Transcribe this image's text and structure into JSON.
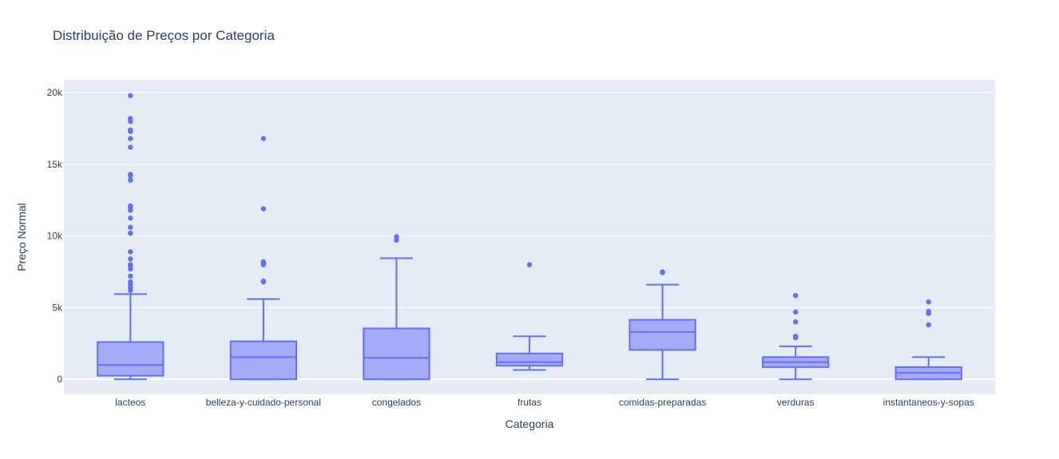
{
  "chart_data": {
    "type": "box",
    "title": "Distribuição de Preços por Categoria",
    "xlabel": "Categoria",
    "ylabel": "Preço Normal",
    "ylim": [
      -1050,
      20900
    ],
    "yticks": [
      0,
      5000,
      10000,
      15000,
      20000
    ],
    "ytick_labels": [
      "0",
      "5k",
      "10k",
      "15k",
      "20k"
    ],
    "grid": true,
    "legend": "none",
    "colors": {
      "line": "#636efa",
      "fill": "#a5abf6",
      "plot_bg": "#e5ecf6",
      "grid": "#ffffff",
      "text": "#2a3f5f"
    },
    "categories": [
      "lacteos",
      "belleza-y-cuidado-personal",
      "congelados",
      "frutas",
      "comidas-preparadas",
      "verduras",
      "instantaneos-y-sopas"
    ],
    "boxes": [
      {
        "category": "lacteos",
        "min": 0,
        "q1": 250,
        "median": 1000,
        "q3": 2600,
        "max": 5950,
        "outliers": [
          6200,
          6400,
          6600,
          6800,
          7200,
          7700,
          7900,
          8000,
          8400,
          8900,
          10200,
          10600,
          11250,
          11800,
          12000,
          12100,
          13900,
          14200,
          14300,
          16200,
          16800,
          17300,
          17400,
          18000,
          18200,
          19800
        ]
      },
      {
        "category": "belleza-y-cuidado-personal",
        "min": 0,
        "q1": 0,
        "median": 1550,
        "q3": 2650,
        "max": 5600,
        "outliers": [
          6800,
          6850,
          8000,
          8100,
          8200,
          11900,
          16800
        ]
      },
      {
        "category": "congelados",
        "min": 0,
        "q1": 0,
        "median": 1500,
        "q3": 3550,
        "max": 8450,
        "outliers": [
          9700,
          9950
        ]
      },
      {
        "category": "frutas",
        "min": 650,
        "q1": 950,
        "median": 1200,
        "q3": 1800,
        "max": 3000,
        "outliers": [
          8000
        ]
      },
      {
        "category": "comidas-preparadas",
        "min": 0,
        "q1": 2050,
        "median": 3300,
        "q3": 4150,
        "max": 6600,
        "outliers": [
          7450,
          7500
        ]
      },
      {
        "category": "verduras",
        "min": 0,
        "q1": 850,
        "median": 1200,
        "q3": 1550,
        "max": 2300,
        "outliers": [
          2900,
          3000,
          4000,
          4700,
          5850
        ]
      },
      {
        "category": "instantaneos-y-sopas",
        "min": 0,
        "q1": 0,
        "median": 450,
        "q3": 850,
        "max": 1550,
        "outliers": [
          3800,
          4600,
          4750,
          5400
        ]
      }
    ]
  }
}
